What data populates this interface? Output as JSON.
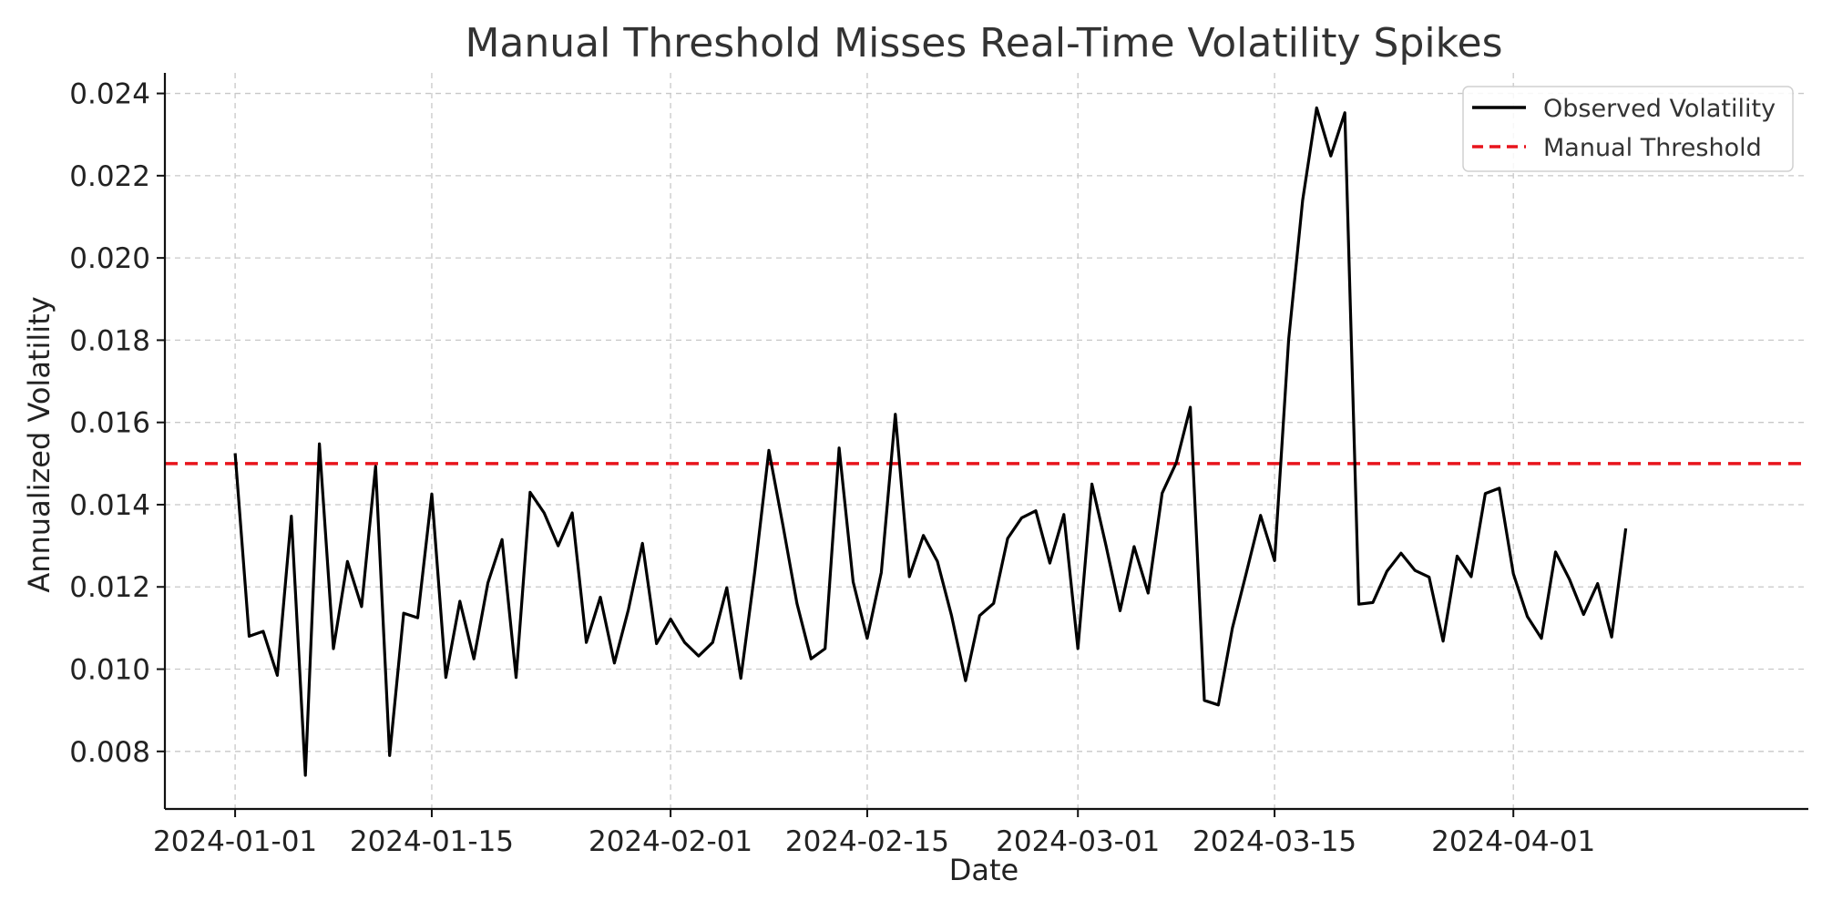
{
  "chart_data": {
    "type": "line",
    "title": "Manual Threshold Misses Real-Time Volatility Spikes",
    "xlabel": "Date",
    "ylabel": "Annualized Volatility",
    "x_start": "2024-01-01",
    "x_end": "2024-04-09",
    "xlim": [
      "2023-12-27",
      "2024-04-22"
    ],
    "ylim": [
      0.0066,
      0.0245
    ],
    "x_ticks": [
      "2024-01-01",
      "2024-01-15",
      "2024-02-01",
      "2024-02-15",
      "2024-03-01",
      "2024-03-15",
      "2024-04-01"
    ],
    "y_ticks": [
      0.008,
      0.01,
      0.012,
      0.014,
      0.016,
      0.018,
      0.02,
      0.022,
      0.024
    ],
    "y_tick_labels": [
      "0.008",
      "0.010",
      "0.012",
      "0.014",
      "0.016",
      "0.018",
      "0.020",
      "0.022",
      "0.024"
    ],
    "grid": true,
    "legend_position": "top-right",
    "series": [
      {
        "name": "Observed Volatility",
        "color": "#000000",
        "style": "solid",
        "values": [
          0.01525,
          0.0108,
          0.01092,
          0.00985,
          0.01372,
          0.00742,
          0.01548,
          0.0105,
          0.01262,
          0.01152,
          0.01493,
          0.0079,
          0.01136,
          0.01125,
          0.01426,
          0.0098,
          0.01165,
          0.01025,
          0.0121,
          0.01315,
          0.0098,
          0.0143,
          0.0138,
          0.013,
          0.0138,
          0.01065,
          0.01175,
          0.01015,
          0.01145,
          0.01306,
          0.01062,
          0.01122,
          0.01065,
          0.01032,
          0.01065,
          0.01198,
          0.00978,
          0.01238,
          0.01532,
          0.0135,
          0.0116,
          0.01025,
          0.0105,
          0.01538,
          0.01212,
          0.01075,
          0.01235,
          0.0162,
          0.01225,
          0.01325,
          0.01262,
          0.0113,
          0.00972,
          0.0113,
          0.0116,
          0.01318,
          0.01368,
          0.01385,
          0.01258,
          0.01376,
          0.0105,
          0.0145,
          0.013,
          0.01142,
          0.01298,
          0.01185,
          0.01428,
          0.01502,
          0.01637,
          0.00924,
          0.00913,
          0.011,
          0.01235,
          0.01374,
          0.01264,
          0.018,
          0.0214,
          0.02365,
          0.02248,
          0.02353,
          0.01158,
          0.01162,
          0.01238,
          0.01282,
          0.0124,
          0.01224,
          0.01068,
          0.01275,
          0.01225,
          0.01427,
          0.0144,
          0.01232,
          0.01128,
          0.01075,
          0.01285,
          0.01218,
          0.01133,
          0.01208,
          0.01078,
          0.01342
        ]
      },
      {
        "name": "Manual Threshold",
        "color": "#e8141c",
        "style": "dashed",
        "values": [
          0.015
        ]
      }
    ]
  }
}
